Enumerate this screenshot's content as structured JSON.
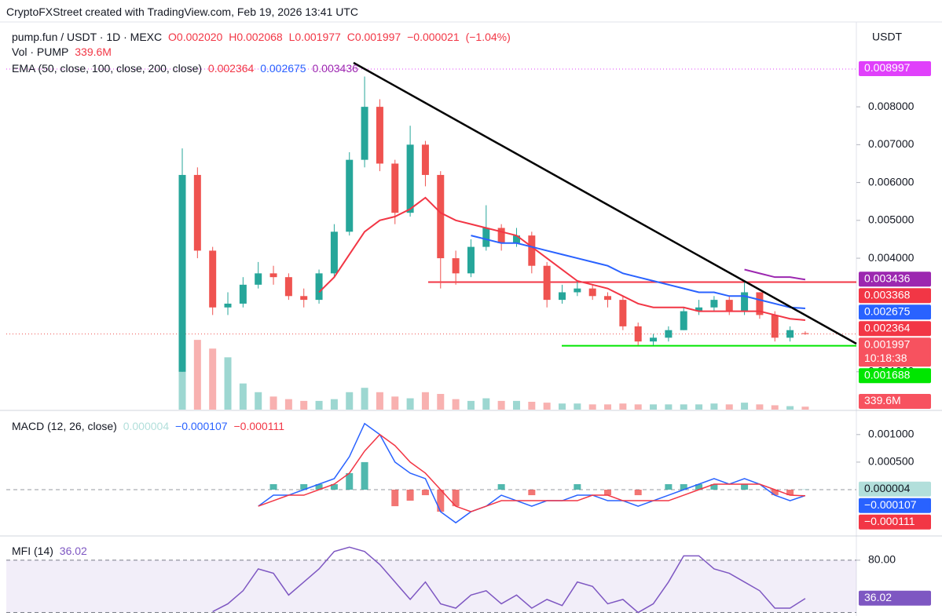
{
  "chart_data": {
    "type": "candlestick",
    "title": "CryptoFXStreet created with TradingView.com, Feb 19, 2026 13:41 UTC",
    "symbol": "pump.fun / USDT · 1D · MEXC",
    "currency": "USDT",
    "legend_values": {
      "open": {
        "value": 0.00202,
        "label": "O0.002020"
      },
      "high": {
        "value": 0.002068,
        "label": "H0.002068"
      },
      "low": {
        "value": 0.001977,
        "label": "L0.001977"
      },
      "close": {
        "value": 0.001997,
        "label": "C0.001997"
      },
      "change": {
        "value": -2.1e-05,
        "label": "−0.000021"
      },
      "change_percent": {
        "value": -1.04,
        "label": "(−1.04%)"
      }
    },
    "up_color": "#26a69a",
    "down_color": "#ef5350",
    "open": [
      0.001,
      0.0062,
      0.0042,
      0.0027,
      0.0028,
      0.0033,
      0.0036,
      0.0035,
      0.003,
      0.0029,
      0.0036,
      0.0047,
      0.0066,
      0.008,
      0.0065,
      0.0052,
      0.007,
      0.0062,
      0.004,
      0.0036,
      0.0043,
      0.0048,
      0.0044,
      0.0046,
      0.0038,
      0.0029,
      0.0031,
      0.0032,
      0.003,
      0.0029,
      0.0022,
      0.0018,
      0.0019,
      0.0021,
      0.0026,
      0.0027,
      0.0029,
      0.0026,
      0.0031,
      0.0025,
      0.0019,
      0.00202
    ],
    "high": [
      0.0069,
      0.0064,
      0.0043,
      0.0031,
      0.0035,
      0.0039,
      0.0038,
      0.0036,
      0.0032,
      0.0037,
      0.0049,
      0.0068,
      0.0088,
      0.0082,
      0.0066,
      0.0075,
      0.0071,
      0.0063,
      0.0042,
      0.0045,
      0.0054,
      0.0049,
      0.0048,
      0.0047,
      0.0039,
      0.0033,
      0.0034,
      0.0033,
      0.0031,
      0.003,
      0.0023,
      0.002,
      0.0022,
      0.0027,
      0.0029,
      0.003,
      0.003,
      0.0034,
      0.0031,
      0.0026,
      0.0022,
      0.002068
    ],
    "low": [
      0.001,
      0.004,
      0.0025,
      0.0025,
      0.0027,
      0.0032,
      0.0033,
      0.0029,
      0.0027,
      0.0028,
      0.0035,
      0.0046,
      0.0064,
      0.0063,
      0.0049,
      0.0051,
      0.0059,
      0.0032,
      0.0033,
      0.0035,
      0.0042,
      0.0042,
      0.0043,
      0.0036,
      0.0027,
      0.0028,
      0.003,
      0.0029,
      0.0027,
      0.0021,
      0.0017,
      0.0017,
      0.0018,
      0.0021,
      0.0025,
      0.0026,
      0.0025,
      0.0025,
      0.0024,
      0.0018,
      0.0018,
      0.001977
    ],
    "close": [
      0.0062,
      0.0042,
      0.0027,
      0.0028,
      0.0033,
      0.0036,
      0.0035,
      0.003,
      0.0029,
      0.0036,
      0.0047,
      0.0066,
      0.008,
      0.0065,
      0.0052,
      0.007,
      0.0062,
      0.004,
      0.0036,
      0.0043,
      0.0048,
      0.0044,
      0.0046,
      0.0038,
      0.0029,
      0.0031,
      0.0032,
      0.003,
      0.0029,
      0.0022,
      0.0018,
      0.0019,
      0.0021,
      0.0026,
      0.0027,
      0.0029,
      0.0026,
      0.0031,
      0.0025,
      0.0019,
      0.0021,
      0.001997
    ],
    "countdown": "10:18:38",
    "ylim": [
      0,
      0.0102
    ],
    "yticks": [
      {
        "value": 0.001,
        "label": "0.001000"
      },
      {
        "value": 0.004,
        "label": "0.004000"
      },
      {
        "value": 0.005,
        "label": "0.005000"
      },
      {
        "value": 0.006,
        "label": "0.006000"
      },
      {
        "value": 0.007,
        "label": "0.007000"
      },
      {
        "value": 0.008,
        "label": "0.008000"
      }
    ],
    "grid": false,
    "ema_legend": "EMA (50, close, 100, close, 200, close)",
    "series": [
      {
        "color": "#f23645",
        "values": [
          null,
          null,
          null,
          null,
          null,
          null,
          null,
          null,
          null,
          0.0031,
          0.0035,
          0.0041,
          0.0047,
          0.005,
          0.0051,
          0.0053,
          0.0056,
          0.0052,
          0.005,
          0.0049,
          0.0048,
          0.0047,
          0.0046,
          0.0043,
          0.004,
          0.0037,
          0.0034,
          0.0033,
          0.0032,
          0.003,
          0.0028,
          0.0027,
          0.0027,
          0.0027,
          0.0026,
          0.0026,
          0.0026,
          0.0026,
          0.0026,
          0.0025,
          0.0024,
          0.002364
        ]
      },
      {
        "color": "#2962ff",
        "values": [
          null,
          null,
          null,
          null,
          null,
          null,
          null,
          null,
          null,
          null,
          null,
          null,
          null,
          null,
          null,
          null,
          null,
          null,
          null,
          0.0046,
          0.0045,
          0.0044,
          0.0044,
          0.0043,
          0.0042,
          0.0041,
          0.004,
          0.0039,
          0.0038,
          0.0036,
          0.0035,
          0.0034,
          0.0033,
          0.0032,
          0.0031,
          0.0031,
          0.003,
          0.003,
          0.0029,
          0.0028,
          0.0027,
          0.002675
        ]
      },
      {
        "color": "#9c27b0",
        "values": [
          null,
          null,
          null,
          null,
          null,
          null,
          null,
          null,
          null,
          null,
          null,
          null,
          null,
          null,
          null,
          null,
          null,
          null,
          null,
          null,
          null,
          null,
          null,
          null,
          null,
          null,
          null,
          null,
          null,
          null,
          null,
          null,
          null,
          null,
          null,
          null,
          null,
          0.0037,
          0.0036,
          0.0035,
          0.0035,
          0.003436
        ]
      }
    ],
    "price_lines": [
      {
        "value": 0.008997,
        "color": "#e040fb",
        "style": "dotted"
      },
      {
        "value": 0.003368,
        "color": "#f23645",
        "style": "solid"
      },
      {
        "value": 0.001688,
        "color": "#00e600",
        "style": "solid"
      }
    ],
    "volume": {
      "name": "Vol · PUMP",
      "ylim": [
        0,
        9000000000
      ],
      "values": [
        6000000000.0,
        8000000000.0,
        7000000000.0,
        6000000000.0,
        3000000000.0,
        2000000000.0,
        1500000000.0,
        1200000000.0,
        1000000000.0,
        1000000000.0,
        1200000000.0,
        2000000000.0,
        2500000000.0,
        2000000000.0,
        1500000000.0,
        1300000000.0,
        2000000000.0,
        1800000000.0,
        1200000000.0,
        1000000000.0,
        1300000000.0,
        1000000000.0,
        1000000000.0,
        900000000.0,
        800000000.0,
        700000000.0,
        700000000.0,
        600000000.0,
        600000000.0,
        700000000.0,
        600000000.0,
        600000000.0,
        600000000.0,
        600000000.0,
        600000000.0,
        700000000.0,
        600000000.0,
        800000000.0,
        600000000.0,
        500000000.0,
        400000000.0,
        339600000
      ],
      "value_labels": [
        null,
        null,
        null,
        null,
        null,
        null,
        null,
        null,
        null,
        null,
        null,
        null,
        null,
        null,
        null,
        null,
        null,
        null,
        null,
        null,
        null,
        null,
        null,
        null,
        null,
        null,
        null,
        null,
        null,
        null,
        null,
        null,
        null,
        null,
        null,
        null,
        null,
        null,
        null,
        null,
        null,
        "339.6M"
      ]
    },
    "macd": {
      "title": "MACD (12, 26, close)",
      "ylim": [
        -0.00084,
        0.00141
      ],
      "yticks": [
        {
          "value": 0.0005,
          "label": "0.000500"
        },
        {
          "value": 0.001,
          "label": "0.001000"
        }
      ],
      "zero_line": 0,
      "histogram": {
        "color": "#26a69a",
        "down_color": "#ef5350",
        "tag_color": "#b2dfdb",
        "values": [
          null,
          null,
          null,
          null,
          null,
          0,
          0.0001,
          0,
          0.0001,
          0.0001,
          0.0001,
          0.0003,
          0.0005,
          0,
          -0.0003,
          -0.0002,
          -0.0001,
          -0.0004,
          -0.0003,
          0,
          0,
          0.0001,
          0,
          -0.0001,
          0,
          0,
          0.0001,
          0,
          -0.0001,
          0,
          -0.0001,
          0,
          0.0001,
          0.0001,
          0.0001,
          0.0001,
          0,
          0.0001,
          0,
          -0.0001,
          -0.0001,
          4e-06
        ]
      },
      "series": [
        {
          "color": "#2962ff",
          "values": [
            null,
            null,
            null,
            null,
            null,
            -0.0003,
            -0.0001,
            -0.0001,
            0,
            0.0001,
            0.0002,
            0.0006,
            0.0012,
            0.001,
            0.0005,
            0.0003,
            0.0002,
            -0.0004,
            -0.0006,
            -0.0004,
            -0.0003,
            -0.0001,
            -0.0002,
            -0.0003,
            -0.0002,
            -0.0002,
            -0.0001,
            -0.0001,
            -0.0002,
            -0.0002,
            -0.0003,
            -0.0002,
            -0.0001,
            0,
            0.0001,
            0.0002,
            0.0001,
            0.0002,
            0.0001,
            -0.0001,
            -0.0002,
            -0.000107
          ],
          "value_labels": [
            null,
            null,
            null,
            null,
            null,
            null,
            null,
            null,
            null,
            null,
            null,
            null,
            null,
            null,
            null,
            null,
            null,
            null,
            null,
            null,
            null,
            null,
            null,
            null,
            null,
            null,
            null,
            null,
            null,
            null,
            null,
            null,
            null,
            null,
            null,
            null,
            null,
            null,
            null,
            null,
            null,
            "−0.000107"
          ]
        },
        {
          "color": "#f23645",
          "values": [
            null,
            null,
            null,
            null,
            null,
            -0.0003,
            -0.0002,
            -0.0001,
            -0.0001,
            0,
            0.0001,
            0.0003,
            0.0007,
            0.001,
            0.0008,
            0.0005,
            0.0003,
            0,
            -0.0003,
            -0.0004,
            -0.0003,
            -0.0002,
            -0.0002,
            -0.0002,
            -0.0002,
            -0.0002,
            -0.0002,
            -0.0001,
            -0.0001,
            -0.0002,
            -0.0002,
            -0.0002,
            -0.0002,
            -0.0001,
            0,
            0.0001,
            0.0001,
            0.0001,
            0.0001,
            0,
            -0.0001,
            -0.000111
          ],
          "value_labels": [
            null,
            null,
            null,
            null,
            null,
            null,
            null,
            null,
            null,
            null,
            null,
            null,
            null,
            null,
            null,
            null,
            null,
            null,
            null,
            null,
            null,
            null,
            null,
            null,
            null,
            null,
            null,
            null,
            null,
            null,
            null,
            null,
            null,
            null,
            null,
            null,
            null,
            null,
            null,
            null,
            null,
            "−0.000111"
          ]
        }
      ]
    },
    "mfi": {
      "title": "MFI (14)",
      "color": "#7e57c2",
      "ylim": [
        16,
        106
      ],
      "yticks": [
        {
          "value": 80,
          "label": "80.00"
        }
      ],
      "band": [
        20,
        80
      ],
      "values": [
        null,
        null,
        21,
        30,
        45,
        70,
        65,
        40,
        55,
        70,
        90,
        95,
        90,
        75,
        55,
        35,
        55,
        30,
        25,
        40,
        45,
        30,
        40,
        25,
        35,
        28,
        55,
        50,
        30,
        35,
        20,
        30,
        55,
        85,
        85,
        70,
        65,
        55,
        45,
        25,
        25,
        36.02
      ]
    }
  }
}
